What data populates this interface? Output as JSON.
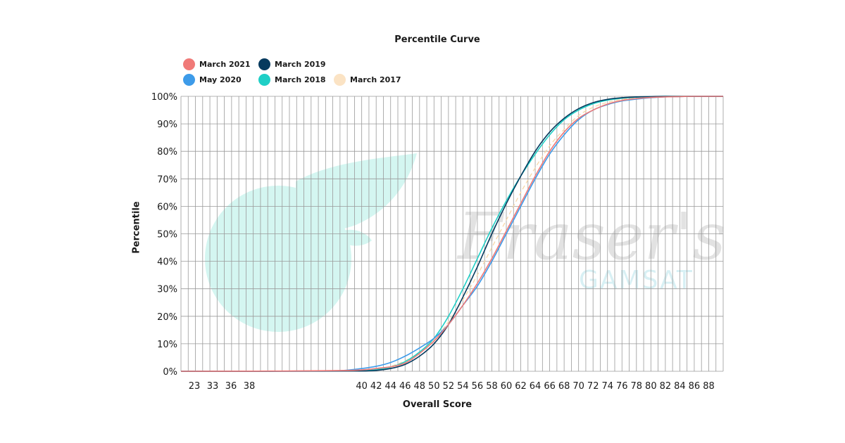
{
  "chart_data": {
    "type": "line",
    "title": "Percentile Curve",
    "xlabel": "Overall Score",
    "ylabel": "Percentile",
    "x_tick_labels": [
      "23",
      "33",
      "36",
      "38",
      "40",
      "42",
      "44",
      "46",
      "48",
      "50",
      "52",
      "54",
      "56",
      "58",
      "60",
      "62",
      "64",
      "66",
      "68",
      "70",
      "72",
      "74",
      "76",
      "78",
      "80",
      "82",
      "84",
      "86",
      "88"
    ],
    "x_range": [
      15,
      90
    ],
    "y_tick_labels": [
      "0%",
      "10%",
      "20%",
      "30%",
      "40%",
      "50%",
      "60%",
      "70%",
      "80%",
      "90%",
      "100%"
    ],
    "ylim": [
      0,
      100
    ],
    "grid": true,
    "legend_position": "top-left",
    "series": [
      {
        "name": "March 2021",
        "color": "#f07a78",
        "dashed": false,
        "x": [
          15,
          38,
          42,
          46,
          48,
          50,
          52,
          54,
          56,
          58,
          60,
          62,
          64,
          66,
          68,
          70,
          72,
          74,
          76,
          78,
          80,
          82,
          84,
          86,
          88,
          90
        ],
        "y": [
          0,
          0.3,
          1.0,
          3.0,
          6.5,
          11,
          17,
          24,
          32,
          41,
          51,
          61,
          71,
          80,
          87,
          92,
          95,
          97.2,
          98.5,
          99.2,
          99.6,
          99.8,
          99.9,
          100,
          100,
          100
        ]
      },
      {
        "name": "May 2020",
        "color": "#3d9be9",
        "dashed": false,
        "x": [
          15,
          36,
          38,
          40,
          42,
          44,
          46,
          48,
          50,
          52,
          54,
          56,
          58,
          60,
          62,
          64,
          66,
          68,
          70,
          72,
          74,
          76,
          78,
          80,
          82,
          84,
          86,
          88,
          90
        ],
        "y": [
          0,
          0.1,
          0.4,
          1.0,
          1.8,
          3.2,
          5.5,
          8.5,
          12,
          17,
          24,
          31,
          40,
          50,
          60,
          70,
          79,
          86,
          91.5,
          95,
          97,
          98.3,
          99,
          99.5,
          99.8,
          99.9,
          100,
          100,
          100
        ]
      },
      {
        "name": "March 2019",
        "color": "#063a5e",
        "dashed": false,
        "x": [
          15,
          40,
          42,
          44,
          46,
          48,
          50,
          52,
          54,
          56,
          58,
          60,
          62,
          64,
          66,
          68,
          70,
          72,
          74,
          76,
          78,
          80,
          82,
          84,
          86,
          88,
          90
        ],
        "y": [
          0,
          0.1,
          0.3,
          1.0,
          2.5,
          5.5,
          10,
          17,
          27,
          38,
          50,
          61,
          71,
          80,
          87,
          92,
          95.5,
          97.7,
          98.9,
          99.5,
          99.8,
          99.9,
          100,
          100,
          100,
          100,
          100
        ]
      },
      {
        "name": "March 2018",
        "color": "#1fcfc6",
        "dashed": false,
        "x": [
          15,
          40,
          42,
          44,
          46,
          48,
          50,
          52,
          54,
          56,
          58,
          60,
          62,
          64,
          66,
          68,
          70,
          72,
          74,
          76,
          78,
          80,
          82,
          84,
          86,
          88,
          90
        ],
        "y": [
          0,
          0.2,
          0.6,
          1.5,
          3.5,
          7,
          12,
          20,
          30,
          41,
          52,
          62,
          71,
          79,
          86,
          91.5,
          95,
          97.3,
          98.6,
          99.3,
          99.7,
          99.9,
          100,
          100,
          100,
          100,
          100
        ]
      },
      {
        "name": "March 2017",
        "color": "#f7d7a8",
        "dashed": true,
        "x": [
          15,
          40,
          42,
          44,
          46,
          48,
          50,
          52,
          54,
          56,
          58,
          60,
          62,
          64,
          66,
          68,
          70,
          72,
          74,
          76,
          78,
          80,
          82,
          84,
          86,
          88,
          90
        ],
        "y": [
          0,
          0.2,
          0.7,
          1.8,
          3.8,
          7,
          11.5,
          18,
          26,
          35,
          45,
          55,
          65,
          74,
          82,
          88,
          93,
          96,
          97.8,
          98.9,
          99.5,
          99.8,
          100,
          100,
          100,
          100,
          100
        ]
      }
    ]
  },
  "legend_items": [
    {
      "name": "March 2021",
      "color": "#f07a78"
    },
    {
      "name": "March 2019",
      "color": "#063a5e"
    },
    {
      "name": "May 2020",
      "color": "#3d9be9"
    },
    {
      "name": "March 2018",
      "color": "#1fcfc6"
    },
    {
      "name": "March 2017",
      "color": "#fbe3c4"
    }
  ],
  "watermark": {
    "brand": "Fraser's",
    "sub": "GAMSAT",
    "leaf_color": "#d4f6f1",
    "script_color": "#e2e2e2",
    "sub_color": "#d8f0f4"
  },
  "colors": {
    "grid": "#9a9a9a",
    "axis_text": "#1a1a1a"
  }
}
